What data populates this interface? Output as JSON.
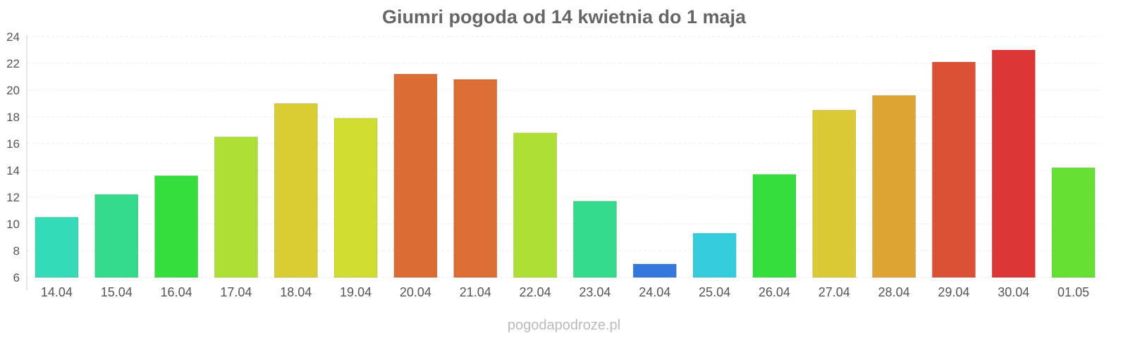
{
  "chart_data": {
    "type": "bar",
    "title": "Giumri pogoda od 14 kwietnia do 1 maja",
    "xlabel": "",
    "ylabel": "",
    "categories": [
      "14.04",
      "15.04",
      "16.04",
      "17.04",
      "18.04",
      "19.04",
      "20.04",
      "21.04",
      "22.04",
      "23.04",
      "24.04",
      "25.04",
      "26.04",
      "27.04",
      "28.04",
      "29.04",
      "30.04",
      "01.05"
    ],
    "values": [
      10.5,
      12.2,
      13.6,
      16.5,
      19.0,
      17.9,
      21.2,
      20.8,
      16.8,
      11.7,
      7.0,
      9.3,
      13.7,
      18.5,
      19.6,
      22.1,
      23.0,
      14.2
    ],
    "colors": [
      "#35dbb8",
      "#35d98a",
      "#35de3a",
      "#addf35",
      "#d9cd35",
      "#cfde31",
      "#dc6c35",
      "#dc6d35",
      "#addf35",
      "#35d98a",
      "#3578dc",
      "#35cddc",
      "#35de3a",
      "#dbca35",
      "#dca535",
      "#dc5135",
      "#dc3535",
      "#68df35"
    ],
    "ylim": [
      6,
      24
    ],
    "yticks": [
      6,
      8,
      10,
      12,
      14,
      16,
      18,
      20,
      22,
      24
    ],
    "grid": true,
    "legend": "none"
  },
  "source": "pogodapodroze.pl"
}
